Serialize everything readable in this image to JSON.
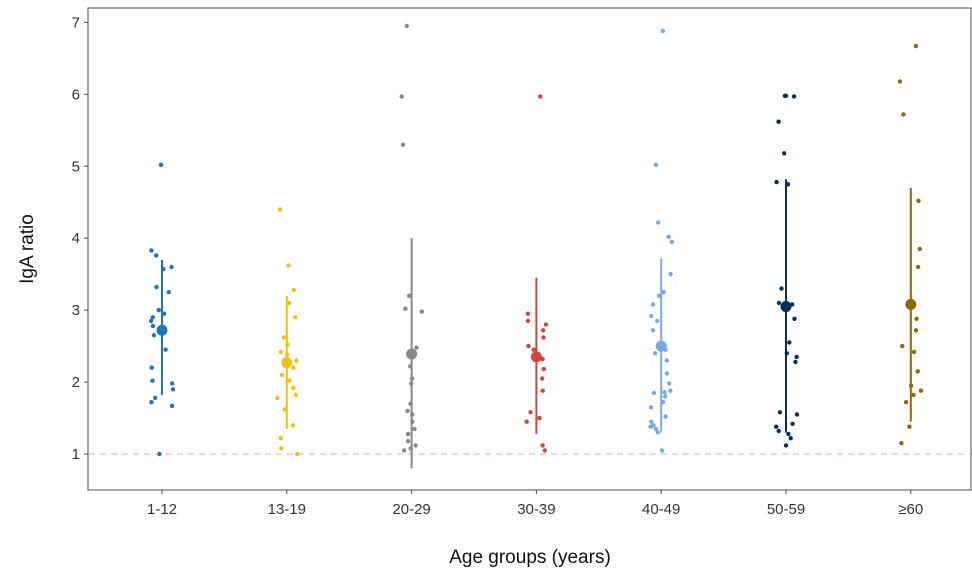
{
  "chart_data": {
    "type": "scatter",
    "xlabel": "Age groups (years)",
    "ylabel": "IgA ratio",
    "categories": [
      "1-12",
      "13-19",
      "20-29",
      "30-39",
      "40-49",
      "50-59",
      "≥60"
    ],
    "yticks": [
      1,
      2,
      3,
      4,
      5,
      6,
      7
    ],
    "ylim": [
      0.5,
      7.2
    ],
    "grid": false,
    "reference_line": {
      "y": 1,
      "color": "#f4b6c2",
      "style": "dashed"
    },
    "series": [
      {
        "category": "1-12",
        "color": "#1f73c4",
        "mean": 2.72,
        "range": [
          1.82,
          3.7
        ],
        "points": [
          5.02,
          3.83,
          3.76,
          3.6,
          3.57,
          3.32,
          3.25,
          3.0,
          2.95,
          2.9,
          2.85,
          2.78,
          2.65,
          2.45,
          2.2,
          2.02,
          1.98,
          1.9,
          1.78,
          1.72,
          1.67,
          1.0
        ]
      },
      {
        "category": "13-19",
        "color": "#f2c011",
        "mean": 2.27,
        "range": [
          1.35,
          3.2
        ],
        "points": [
          4.4,
          3.62,
          3.28,
          3.1,
          2.9,
          2.62,
          2.52,
          2.42,
          2.38,
          2.3,
          2.2,
          2.1,
          2.02,
          1.92,
          1.82,
          1.78,
          1.62,
          1.4,
          1.22,
          1.08,
          1.0
        ]
      },
      {
        "category": "20-29",
        "color": "#888888",
        "mean": 2.39,
        "range": [
          0.8,
          4.0
        ],
        "points": [
          6.95,
          5.97,
          5.3,
          3.2,
          3.02,
          2.98,
          2.48,
          2.42,
          2.22,
          2.05,
          1.98,
          1.7,
          1.6,
          1.55,
          1.45,
          1.35,
          1.28,
          1.18,
          1.12,
          1.08,
          1.05
        ]
      },
      {
        "category": "30-39",
        "color": "#d0463c",
        "mean": 2.35,
        "range": [
          1.28,
          3.45
        ],
        "points": [
          5.97,
          2.95,
          2.85,
          2.8,
          2.72,
          2.62,
          2.5,
          2.45,
          2.32,
          2.18,
          2.05,
          1.88,
          1.58,
          1.5,
          1.45,
          1.12,
          1.05
        ]
      },
      {
        "category": "40-49",
        "color": "#7ba8e0",
        "mean": 2.5,
        "range": [
          1.3,
          3.72
        ],
        "points": [
          6.88,
          5.02,
          4.22,
          4.02,
          3.95,
          3.5,
          3.25,
          3.2,
          3.08,
          2.92,
          2.85,
          2.72,
          2.52,
          2.45,
          2.4,
          2.3,
          2.12,
          1.98,
          1.88,
          1.86,
          1.85,
          1.8,
          1.72,
          1.65,
          1.52,
          1.45,
          1.4,
          1.38,
          1.35,
          1.3,
          1.05
        ]
      },
      {
        "category": "50-59",
        "color": "#0b2e5e",
        "mean": 3.05,
        "range": [
          1.3,
          4.82
        ],
        "points": [
          5.98,
          5.98,
          5.97,
          5.62,
          5.18,
          4.78,
          4.75,
          3.3,
          3.1,
          3.08,
          2.88,
          2.55,
          2.4,
          2.35,
          2.28,
          1.58,
          1.55,
          1.42,
          1.38,
          1.32,
          1.28,
          1.22,
          1.12
        ]
      },
      {
        "category": "≥60",
        "color": "#8b6a0e",
        "mean": 3.08,
        "range": [
          1.45,
          4.7
        ],
        "points": [
          6.67,
          6.18,
          5.72,
          4.52,
          3.85,
          3.6,
          3.08,
          2.88,
          2.72,
          2.5,
          2.42,
          2.15,
          1.95,
          1.88,
          1.82,
          1.72,
          1.38,
          1.15
        ]
      }
    ]
  }
}
